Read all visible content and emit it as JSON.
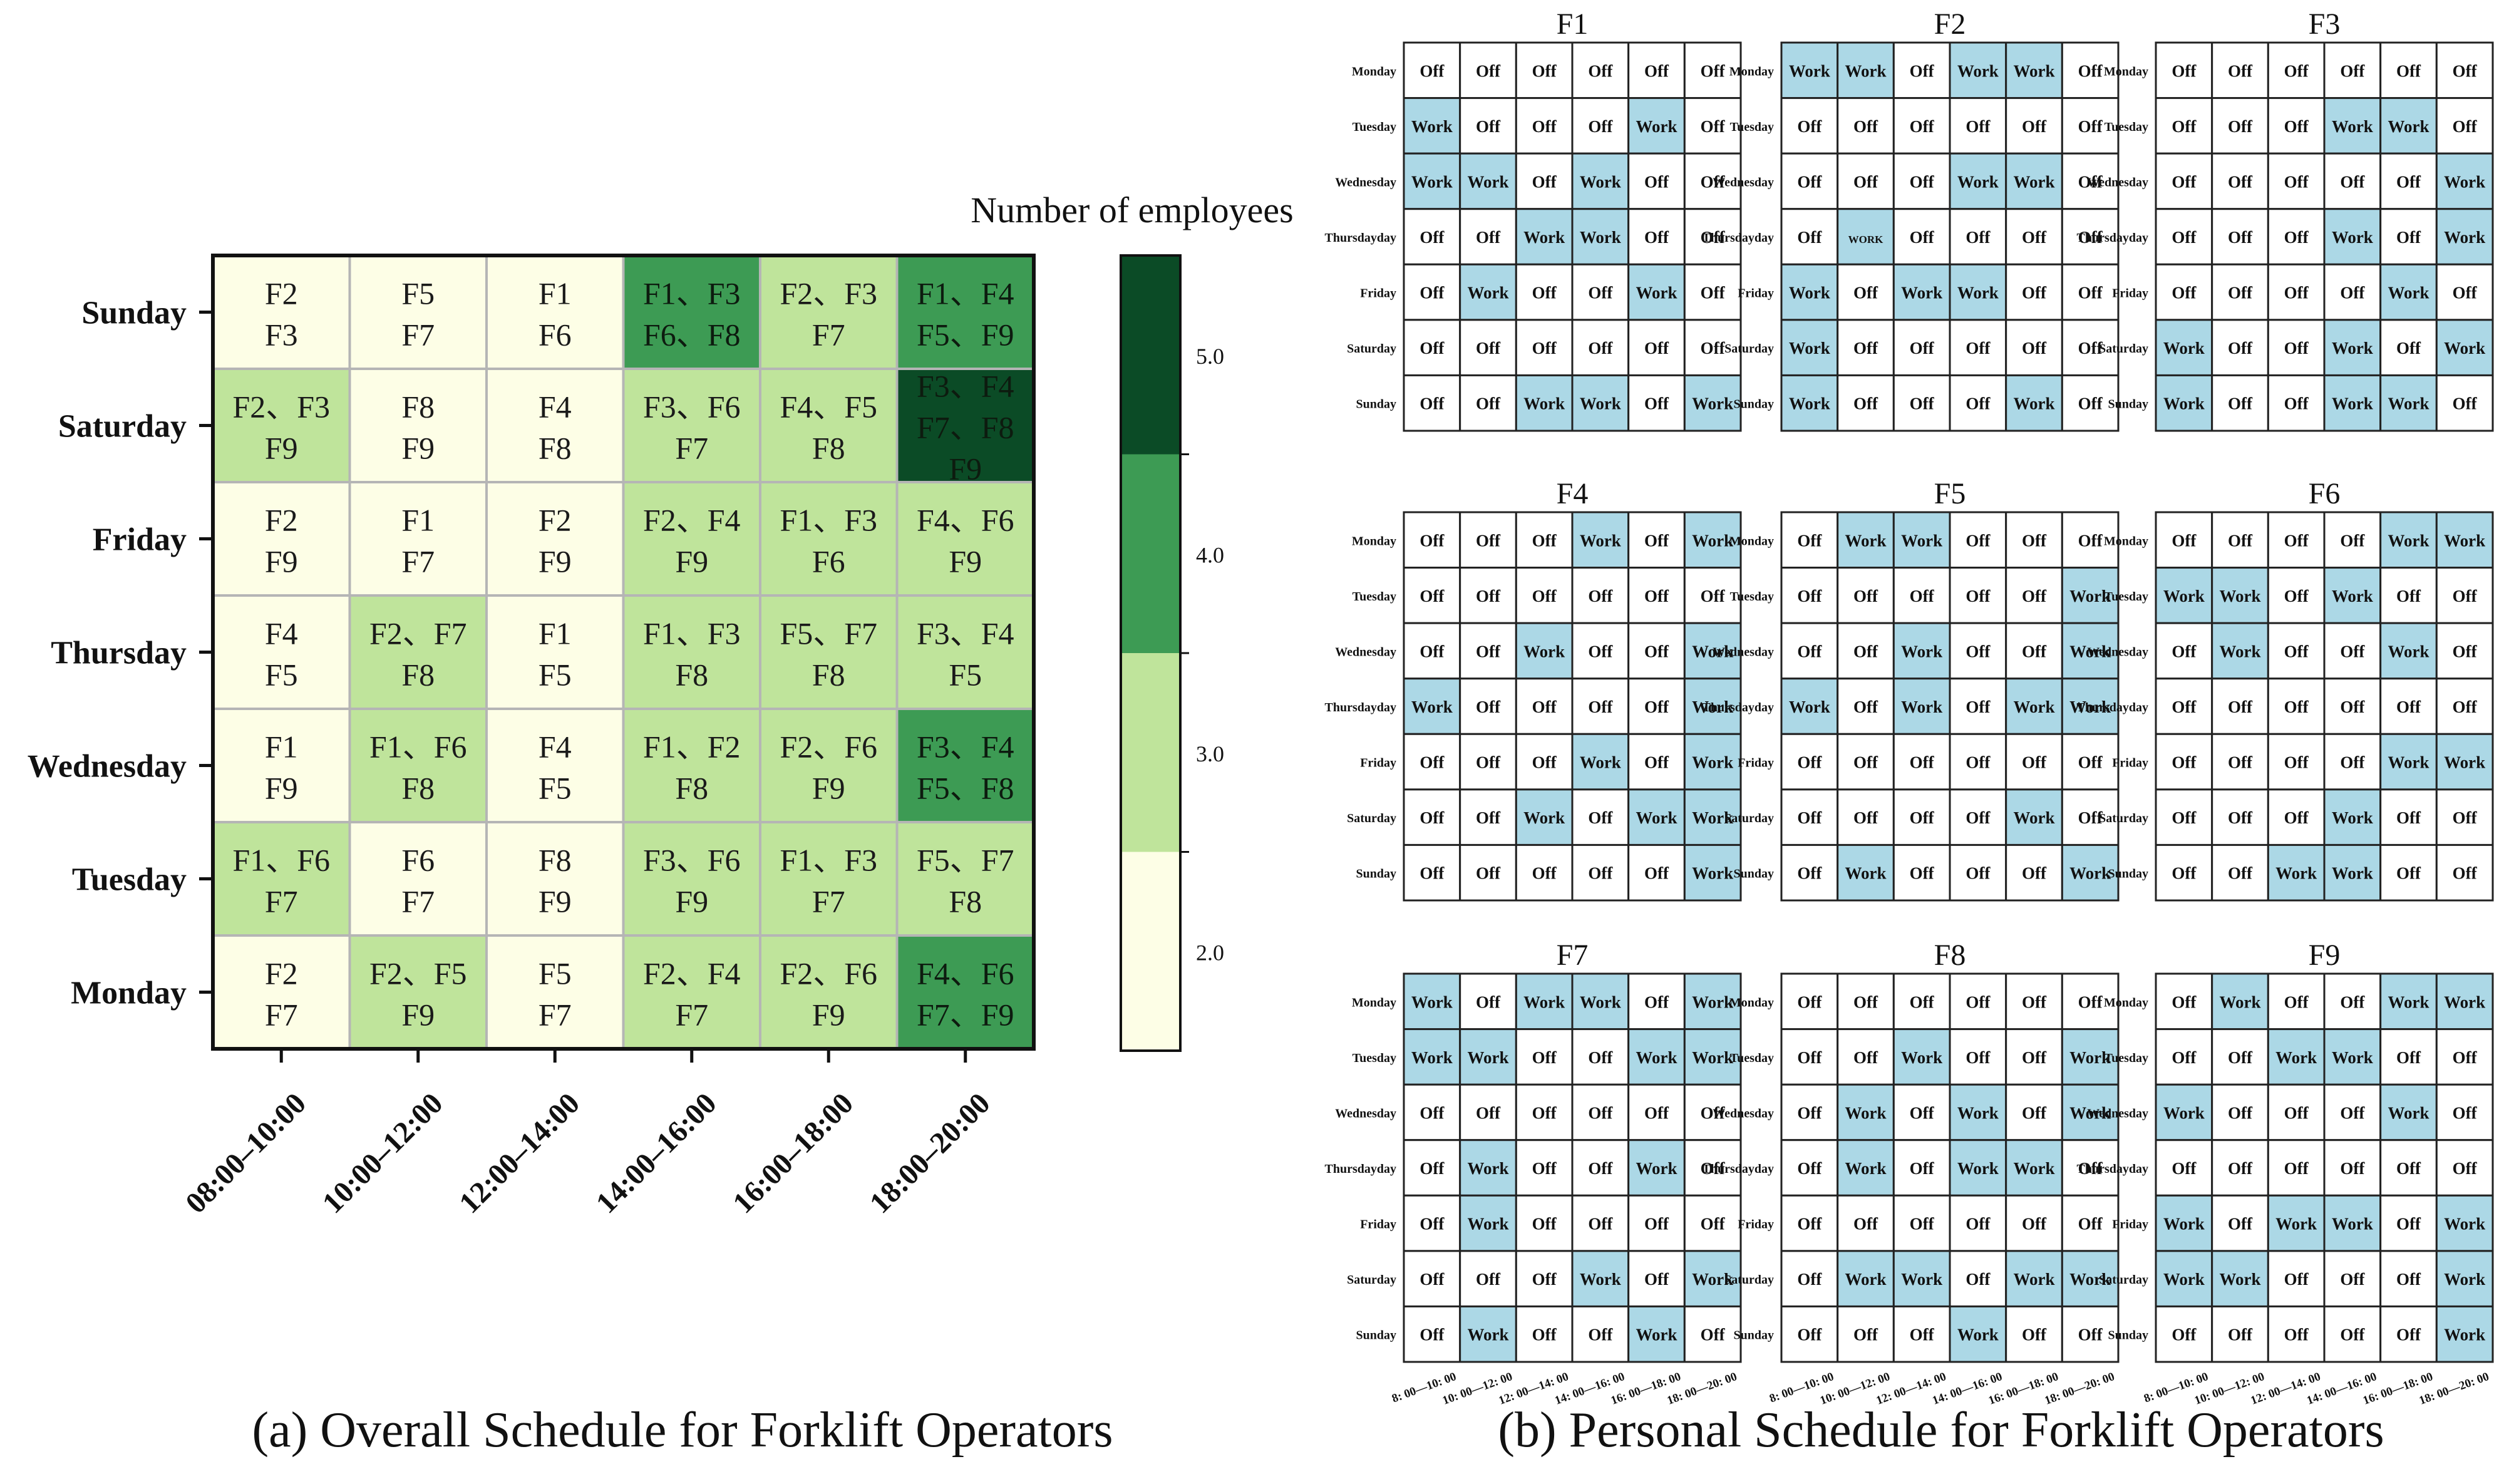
{
  "panel_a": {
    "caption": "(a) Overall Schedule for Forklift Operators",
    "colorbar_title": "Number of employees",
    "colorbar_ticks": [
      "2.0",
      "3.0",
      "4.0",
      "5.0"
    ]
  },
  "panel_b": {
    "caption": "(b) Personal Schedule for Forklift Operators",
    "work_label": "Work",
    "off_label": "Off"
  },
  "colors": {
    "level2": "#fdfee6",
    "level3": "#bfe49b",
    "level4": "#3d9b54",
    "level5": "#0b4b26",
    "work_cell": "#acd8e6",
    "off_cell": "#ffffff",
    "cell_border": "#222222",
    "heat_grid": "#b5b5b5"
  },
  "chart_data": [
    {
      "type": "heatmap",
      "title": "",
      "xlabel": "",
      "ylabel": "",
      "colorbar_label": "Number of employees",
      "colorbar_ticks": [
        2.0,
        3.0,
        4.0,
        5.0
      ],
      "x": [
        "08:00–10:00",
        "10:00–12:00",
        "12:00–14:00",
        "14:00–16:00",
        "16:00–18:00",
        "18:00–20:00"
      ],
      "y": [
        "Sunday",
        "Saturday",
        "Friday",
        "Thursday",
        "Wednesday",
        "Tuesday",
        "Monday"
      ],
      "values": [
        [
          2,
          2,
          2,
          4,
          3,
          4
        ],
        [
          3,
          2,
          2,
          3,
          3,
          5
        ],
        [
          2,
          2,
          2,
          3,
          3,
          3
        ],
        [
          2,
          3,
          2,
          3,
          3,
          3
        ],
        [
          2,
          3,
          2,
          3,
          3,
          4
        ],
        [
          3,
          2,
          2,
          3,
          3,
          3
        ],
        [
          2,
          3,
          2,
          3,
          3,
          4
        ]
      ],
      "cell_labels": [
        [
          [
            "F2",
            "F3"
          ],
          [
            "F5",
            "F7"
          ],
          [
            "F1",
            "F6"
          ],
          [
            "F1、F3",
            "F6、F8"
          ],
          [
            "F2、F3",
            "F7"
          ],
          [
            "F1、F4",
            "F5、F9"
          ]
        ],
        [
          [
            "F2、F3",
            "F9"
          ],
          [
            "F8",
            "F9"
          ],
          [
            "F4",
            "F8"
          ],
          [
            "F3、F6",
            "F7"
          ],
          [
            "F4、F5",
            "F8"
          ],
          [
            "F3、F4",
            "F7、F8",
            "F9"
          ]
        ],
        [
          [
            "F2",
            "F9"
          ],
          [
            "F1",
            "F7"
          ],
          [
            "F2",
            "F9"
          ],
          [
            "F2、F4",
            "F9"
          ],
          [
            "F1、F3",
            "F6"
          ],
          [
            "F4、F6",
            "F9"
          ]
        ],
        [
          [
            "F4",
            "F5"
          ],
          [
            "F2、F7",
            "F8"
          ],
          [
            "F1",
            "F5"
          ],
          [
            "F1、F3",
            "F8"
          ],
          [
            "F5、F7",
            "F8"
          ],
          [
            "F3、F4",
            "F5"
          ]
        ],
        [
          [
            "F1",
            "F9"
          ],
          [
            "F1、F6",
            "F8"
          ],
          [
            "F4",
            "F5"
          ],
          [
            "F1、F2",
            "F8"
          ],
          [
            "F2、F6",
            "F9"
          ],
          [
            "F3、F4",
            "F5、F8"
          ]
        ],
        [
          [
            "F1、F6",
            "F7"
          ],
          [
            "F6",
            "F7"
          ],
          [
            "F8",
            "F9"
          ],
          [
            "F3、F6",
            "F9"
          ],
          [
            "F1、F3",
            "F7"
          ],
          [
            "F5、F7",
            "F8"
          ]
        ],
        [
          [
            "F2",
            "F7"
          ],
          [
            "F2、F5",
            "F9"
          ],
          [
            "F5",
            "F7"
          ],
          [
            "F2、F4",
            "F7"
          ],
          [
            "F2、F6",
            "F9"
          ],
          [
            "F4、F6",
            "F7、F9"
          ]
        ]
      ]
    },
    {
      "type": "table",
      "row_labels": [
        "Monday",
        "Tuesday",
        "Wednesday",
        "Thursdayday",
        "Friday",
        "Saturday",
        "Sunday"
      ],
      "column_labels": [
        "8: 00—10: 00",
        "10: 00—12: 00",
        "12: 00—14: 00",
        "14: 00—16: 00",
        "16: 00—18: 00",
        "18: 00—20: 00"
      ],
      "operators": [
        {
          "name": "F1",
          "cells": [
            [
              "Off",
              "Off",
              "Off",
              "Off",
              "Off",
              "Off"
            ],
            [
              "Work",
              "Off",
              "Off",
              "Off",
              "Work",
              "Off"
            ],
            [
              "Work",
              "Work",
              "Off",
              "Work",
              "Off",
              "Off"
            ],
            [
              "Off",
              "Off",
              "Work",
              "Work",
              "Off",
              "Off"
            ],
            [
              "Off",
              "Work",
              "Off",
              "Off",
              "Work",
              "Off"
            ],
            [
              "Off",
              "Off",
              "Off",
              "Off",
              "Off",
              "Off"
            ],
            [
              "Off",
              "Off",
              "Work",
              "Work",
              "Off",
              "Work"
            ]
          ]
        },
        {
          "name": "F2",
          "cells": [
            [
              "Work",
              "Work",
              "Off",
              "Work",
              "Work",
              "Off"
            ],
            [
              "Off",
              "Off",
              "Off",
              "Off",
              "Off",
              "Off"
            ],
            [
              "Off",
              "Off",
              "Off",
              "Work",
              "Work",
              "Off"
            ],
            [
              "Off",
              "WORK",
              "Off",
              "Off",
              "Off",
              "Off"
            ],
            [
              "Work",
              "Off",
              "Work",
              "Work",
              "Off",
              "Off"
            ],
            [
              "Work",
              "Off",
              "Off",
              "Off",
              "Off",
              "Off"
            ],
            [
              "Work",
              "Off",
              "Off",
              "Off",
              "Work",
              "Off"
            ]
          ]
        },
        {
          "name": "F3",
          "cells": [
            [
              "Off",
              "Off",
              "Off",
              "Off",
              "Off",
              "Off"
            ],
            [
              "Off",
              "Off",
              "Off",
              "Work",
              "Work",
              "Off"
            ],
            [
              "Off",
              "Off",
              "Off",
              "Off",
              "Off",
              "Work"
            ],
            [
              "Off",
              "Off",
              "Off",
              "Work",
              "Off",
              "Work"
            ],
            [
              "Off",
              "Off",
              "Off",
              "Off",
              "Work",
              "Off"
            ],
            [
              "Work",
              "Off",
              "Off",
              "Work",
              "Off",
              "Work"
            ],
            [
              "Work",
              "Off",
              "Off",
              "Work",
              "Work",
              "Off"
            ]
          ]
        },
        {
          "name": "F4",
          "cells": [
            [
              "Off",
              "Off",
              "Off",
              "Work",
              "Off",
              "Work"
            ],
            [
              "Off",
              "Off",
              "Off",
              "Off",
              "Off",
              "Off"
            ],
            [
              "Off",
              "Off",
              "Work",
              "Off",
              "Off",
              "Work"
            ],
            [
              "Work",
              "Off",
              "Off",
              "Off",
              "Off",
              "Work"
            ],
            [
              "Off",
              "Off",
              "Off",
              "Work",
              "Off",
              "Work"
            ],
            [
              "Off",
              "Off",
              "Work",
              "Off",
              "Work",
              "Work"
            ],
            [
              "Off",
              "Off",
              "Off",
              "Off",
              "Off",
              "Work"
            ]
          ]
        },
        {
          "name": "F5",
          "cells": [
            [
              "Off",
              "Work",
              "Work",
              "Off",
              "Off",
              "Off"
            ],
            [
              "Off",
              "Off",
              "Off",
              "Off",
              "Off",
              "Work"
            ],
            [
              "Off",
              "Off",
              "Work",
              "Off",
              "Off",
              "Work"
            ],
            [
              "Work",
              "Off",
              "Work",
              "Off",
              "Work",
              "Work"
            ],
            [
              "Off",
              "Off",
              "Off",
              "Off",
              "Off",
              "Off"
            ],
            [
              "Off",
              "Off",
              "Off",
              "Off",
              "Work",
              "Off"
            ],
            [
              "Off",
              "Work",
              "Off",
              "Off",
              "Off",
              "Work"
            ]
          ]
        },
        {
          "name": "F6",
          "cells": [
            [
              "Off",
              "Off",
              "Off",
              "Off",
              "Work",
              "Work"
            ],
            [
              "Work",
              "Work",
              "Off",
              "Work",
              "Off",
              "Off"
            ],
            [
              "Off",
              "Work",
              "Off",
              "Off",
              "Work",
              "Off"
            ],
            [
              "Off",
              "Off",
              "Off",
              "Off",
              "Off",
              "Off"
            ],
            [
              "Off",
              "Off",
              "Off",
              "Off",
              "Work",
              "Work"
            ],
            [
              "Off",
              "Off",
              "Off",
              "Work",
              "Off",
              "Off"
            ],
            [
              "Off",
              "Off",
              "Work",
              "Work",
              "Off",
              "Off"
            ]
          ]
        },
        {
          "name": "F7",
          "cells": [
            [
              "Work",
              "Off",
              "Work",
              "Work",
              "Off",
              "Work"
            ],
            [
              "Work",
              "Work",
              "Off",
              "Off",
              "Work",
              "Work"
            ],
            [
              "Off",
              "Off",
              "Off",
              "Off",
              "Off",
              "Off"
            ],
            [
              "Off",
              "Work",
              "Off",
              "Off",
              "Work",
              "Off"
            ],
            [
              "Off",
              "Work",
              "Off",
              "Off",
              "Off",
              "Off"
            ],
            [
              "Off",
              "Off",
              "Off",
              "Work",
              "Off",
              "Work"
            ],
            [
              "Off",
              "Work",
              "Off",
              "Off",
              "Work",
              "Off"
            ]
          ]
        },
        {
          "name": "F8",
          "cells": [
            [
              "Off",
              "Off",
              "Off",
              "Off",
              "Off",
              "Off"
            ],
            [
              "Off",
              "Off",
              "Work",
              "Off",
              "Off",
              "Work"
            ],
            [
              "Off",
              "Work",
              "Off",
              "Work",
              "Off",
              "Work"
            ],
            [
              "Off",
              "Work",
              "Off",
              "Work",
              "Work",
              "Off"
            ],
            [
              "Off",
              "Off",
              "Off",
              "Off",
              "Off",
              "Off"
            ],
            [
              "Off",
              "Work",
              "Work",
              "Off",
              "Work",
              "Work"
            ],
            [
              "Off",
              "Off",
              "Off",
              "Work",
              "Off",
              "Off"
            ]
          ]
        },
        {
          "name": "F9",
          "cells": [
            [
              "Off",
              "Work",
              "Off",
              "Off",
              "Work",
              "Work"
            ],
            [
              "Off",
              "Off",
              "Work",
              "Work",
              "Off",
              "Off"
            ],
            [
              "Work",
              "Off",
              "Off",
              "Off",
              "Work",
              "Off"
            ],
            [
              "Off",
              "Off",
              "Off",
              "Off",
              "Off",
              "Off"
            ],
            [
              "Work",
              "Off",
              "Work",
              "Work",
              "Off",
              "Work"
            ],
            [
              "Work",
              "Work",
              "Off",
              "Off",
              "Off",
              "Work"
            ],
            [
              "Off",
              "Off",
              "Off",
              "Off",
              "Off",
              "Work"
            ]
          ]
        }
      ]
    }
  ]
}
